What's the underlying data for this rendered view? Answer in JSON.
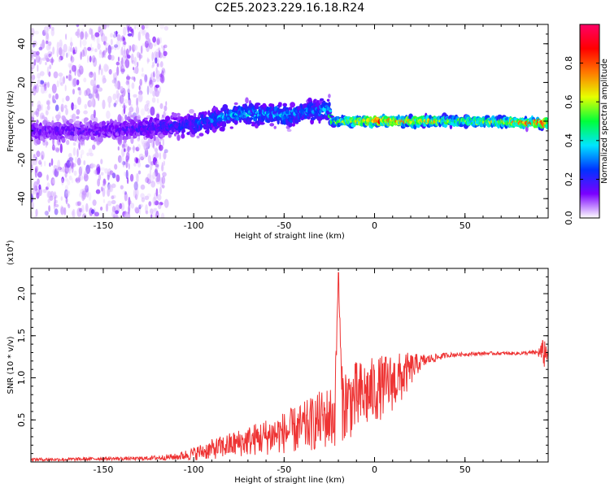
{
  "title": "C2E5.2023.229.16.18.R24",
  "chart_data": [
    {
      "type": "heatmap",
      "xlabel": "Height of straight line (km)",
      "ylabel": "Frequency (Hz)",
      "xlim": [
        -190,
        96
      ],
      "ylim": [
        -50,
        50
      ],
      "xticks": [
        -150,
        -100,
        -50,
        0,
        50
      ],
      "yticks": [
        -40,
        -20,
        0,
        20,
        40
      ],
      "colorbar": {
        "label": "Normalized spectral amplitude",
        "range": [
          0.0,
          1.0
        ],
        "ticks": [
          "0.0",
          "0.2",
          "0.4",
          "0.6",
          "0.8"
        ],
        "tick_values": [
          0.0,
          0.2,
          0.4,
          0.6,
          0.8
        ],
        "colormap": [
          "#ffffff",
          "#7a00ff",
          "#0033ff",
          "#00e5ff",
          "#00ff3a",
          "#e6ff00",
          "#ff7a00",
          "#ff0000",
          "#ff0066"
        ]
      },
      "ridge": {
        "description_points_x": [
          -190,
          -150,
          -120,
          -100,
          -80,
          -62,
          -50,
          -35,
          -25,
          -24,
          0,
          50,
          96
        ],
        "center_freq": [
          -5,
          -5,
          -3,
          -2,
          3,
          4,
          3,
          5,
          6,
          0,
          0,
          0,
          -1
        ],
        "peak_amplitude": [
          0.15,
          0.15,
          0.2,
          0.25,
          0.35,
          0.35,
          0.35,
          0.3,
          0.35,
          0.5,
          0.8,
          0.55,
          0.85
        ]
      }
    },
    {
      "type": "line",
      "xlabel": "Height of straight line (km)",
      "ylabel": "SNR (10 * v/v)",
      "y_multiplier": "(x10",
      "y_multiplier_exp": "4",
      "y_multiplier_close": ")",
      "xlim": [
        -190,
        96
      ],
      "ylim": [
        0,
        2.3
      ],
      "xticks": [
        -150,
        -100,
        -50,
        0,
        50
      ],
      "yticks": [
        0.5,
        1.0,
        1.5,
        2.0
      ],
      "ytick_labels": [
        "0.5",
        "1.0",
        "1.5",
        "2.0"
      ],
      "series": [
        {
          "color": "#ee3333",
          "x": [
            -190,
            -170,
            -150,
            -130,
            -110,
            -100,
            -90,
            -80,
            -70,
            -60,
            -50,
            -40,
            -30,
            -22,
            -20,
            -18,
            -10,
            0,
            10,
            15,
            20,
            25,
            30,
            40,
            50,
            60,
            70,
            80,
            90,
            94,
            96
          ],
          "y": [
            0.03,
            0.03,
            0.04,
            0.04,
            0.06,
            0.1,
            0.15,
            0.2,
            0.25,
            0.3,
            0.35,
            0.4,
            0.5,
            0.55,
            2.25,
            0.7,
            0.75,
            0.85,
            0.95,
            1.0,
            1.1,
            1.18,
            1.22,
            1.27,
            1.28,
            1.29,
            1.29,
            1.29,
            1.3,
            1.3,
            1.3
          ],
          "noise": [
            0.02,
            0.02,
            0.02,
            0.02,
            0.04,
            0.08,
            0.12,
            0.15,
            0.18,
            0.22,
            0.25,
            0.3,
            0.35,
            0.4,
            0.0,
            0.45,
            0.45,
            0.4,
            0.35,
            0.3,
            0.2,
            0.1,
            0.06,
            0.03,
            0.02,
            0.02,
            0.02,
            0.02,
            0.03,
            0.2,
            0.05
          ]
        }
      ]
    }
  ]
}
